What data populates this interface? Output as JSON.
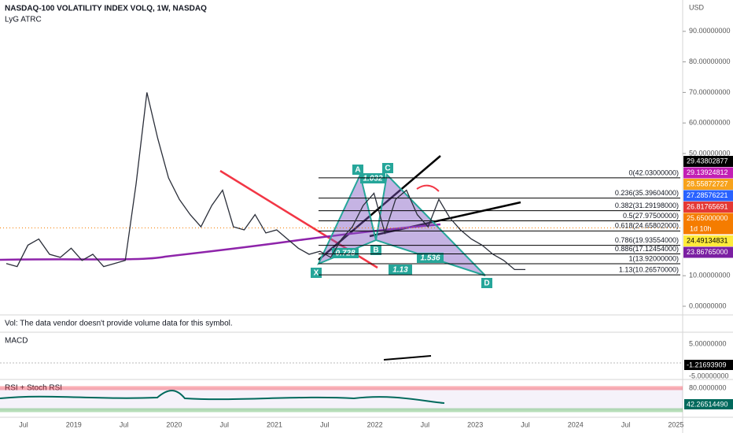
{
  "header": {
    "title": "NASDAQ-100 VOLATILITY INDEX VOLQ, 1W, NASDAQ",
    "indicator": "LyG ATRC",
    "currency": "USD"
  },
  "price": {
    "yticks": [
      {
        "value": 90,
        "label": "90.00000000"
      },
      {
        "value": 80,
        "label": "80.00000000"
      },
      {
        "value": 70,
        "label": "70.00000000"
      },
      {
        "value": 60,
        "label": "60.00000000"
      },
      {
        "value": 50,
        "label": "50.00000000"
      },
      {
        "value": 10,
        "label": "10.00000000"
      },
      {
        "value": 0,
        "label": "0.00000000"
      }
    ],
    "closes": [
      14,
      13,
      20,
      22,
      17,
      16,
      19,
      15,
      17,
      13,
      14,
      15,
      40,
      70,
      55,
      42,
      35,
      30,
      26,
      33,
      38,
      26,
      25,
      30,
      24,
      25,
      22,
      19,
      17,
      18,
      16,
      22,
      26,
      33,
      37,
      24,
      35,
      38,
      30,
      26,
      35,
      29,
      25,
      22,
      20,
      17,
      15,
      12,
      12
    ],
    "tags": [
      {
        "value": 29.43802877,
        "label": "29.43802877",
        "color": "#000000"
      },
      {
        "value": 29.13924812,
        "label": "29.13924812",
        "color": "#c21fb4"
      },
      {
        "value": 28.55872727,
        "label": "28.55872727",
        "color": "#f7a21b"
      },
      {
        "value": 27.28576221,
        "label": "27.28576221",
        "color": "#2962ff"
      },
      {
        "value": 26.81765691,
        "label": "26.81765691",
        "color": "#e53935"
      },
      {
        "value": 25.65,
        "label": "25.65000000",
        "color": "#f57c00",
        "countdown": "1d 10h"
      },
      {
        "value": 24.49134831,
        "label": "24.49134831",
        "color": "#ffeb3b"
      },
      {
        "value": 23.86765,
        "label": "23.86765000",
        "color": "#7b1fa2"
      }
    ]
  },
  "fib": [
    {
      "value": 42.03,
      "label": "0(42.03000000)"
    },
    {
      "value": 35.39604,
      "label": "0.236(35.39604000)"
    },
    {
      "value": 31.29198,
      "label": "0.382(31.29198000)"
    },
    {
      "value": 27.975,
      "label": "0.5(27.97500000)"
    },
    {
      "value": 24.65802,
      "label": "0.618(24.65802000)"
    },
    {
      "value": 19.93554,
      "label": "0.786(19.93554000)"
    },
    {
      "value": 17.12454,
      "label": "0.886(17.12454000)"
    },
    {
      "value": 13.92,
      "label": "1(13.92000000)"
    },
    {
      "value": 10.2657,
      "label": "1.13(10.26570000)"
    }
  ],
  "pattern": {
    "points": [
      "X",
      "A",
      "B",
      "C",
      "D"
    ],
    "ratios": [
      "1.032",
      "0.728",
      "1.536",
      "1.13"
    ]
  },
  "volume": {
    "note": "Vol: The data vendor doesn't provide volume data for this symbol."
  },
  "macd": {
    "title": "MACD",
    "ticks": [
      "5.00000000",
      "-5.00000000"
    ],
    "last": "-1.21693909"
  },
  "rsi": {
    "title": "RSI + Stoch RSI",
    "ticks": [
      "80.0000000"
    ],
    "last": "42.26514490"
  },
  "xaxis": [
    "Jul",
    "2019",
    "Jul",
    "2020",
    "Jul",
    "2021",
    "Jul",
    "2022",
    "Jul",
    "2023",
    "Jul",
    "2024",
    "Jul",
    "2025"
  ]
}
